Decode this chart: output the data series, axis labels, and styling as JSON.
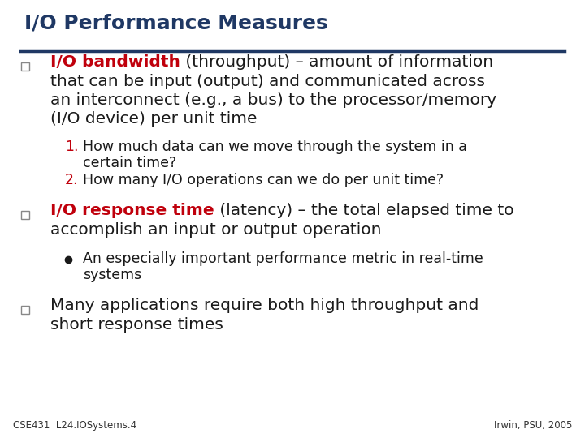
{
  "title": "I/O Performance Measures",
  "title_color": "#1F3864",
  "title_underline_color": "#1F3864",
  "background_color": "#FFFFFF",
  "bullet1_colored": "I/O bandwidth",
  "bullet1_colored_color": "#C0000C",
  "sub1_num_color": "#C0000C",
  "sub2_num_color": "#C0000C",
  "sub1_text": "How much data can we move through the system in a",
  "sub1_text2": "certain time?",
  "sub2_text": "How many I/O operations can we do per unit time?",
  "bullet2_colored": "I/O response time",
  "bullet2_colored_color": "#C0000C",
  "sub3_text": "An especially important performance metric in real-time",
  "sub3_text2": "systems",
  "bullet3_line1": "Many applications require both high throughput and",
  "bullet3_line2": "short response times",
  "footer_left": "CSE431  L24.IOSystems.4",
  "footer_right": "Irwin, PSU, 2005",
  "text_color": "#1a1a1a",
  "footer_color": "#333333",
  "title_fontsize": 18,
  "body_fontsize": 14.5,
  "sub_fontsize": 12.5,
  "footer_fontsize": 8.5
}
